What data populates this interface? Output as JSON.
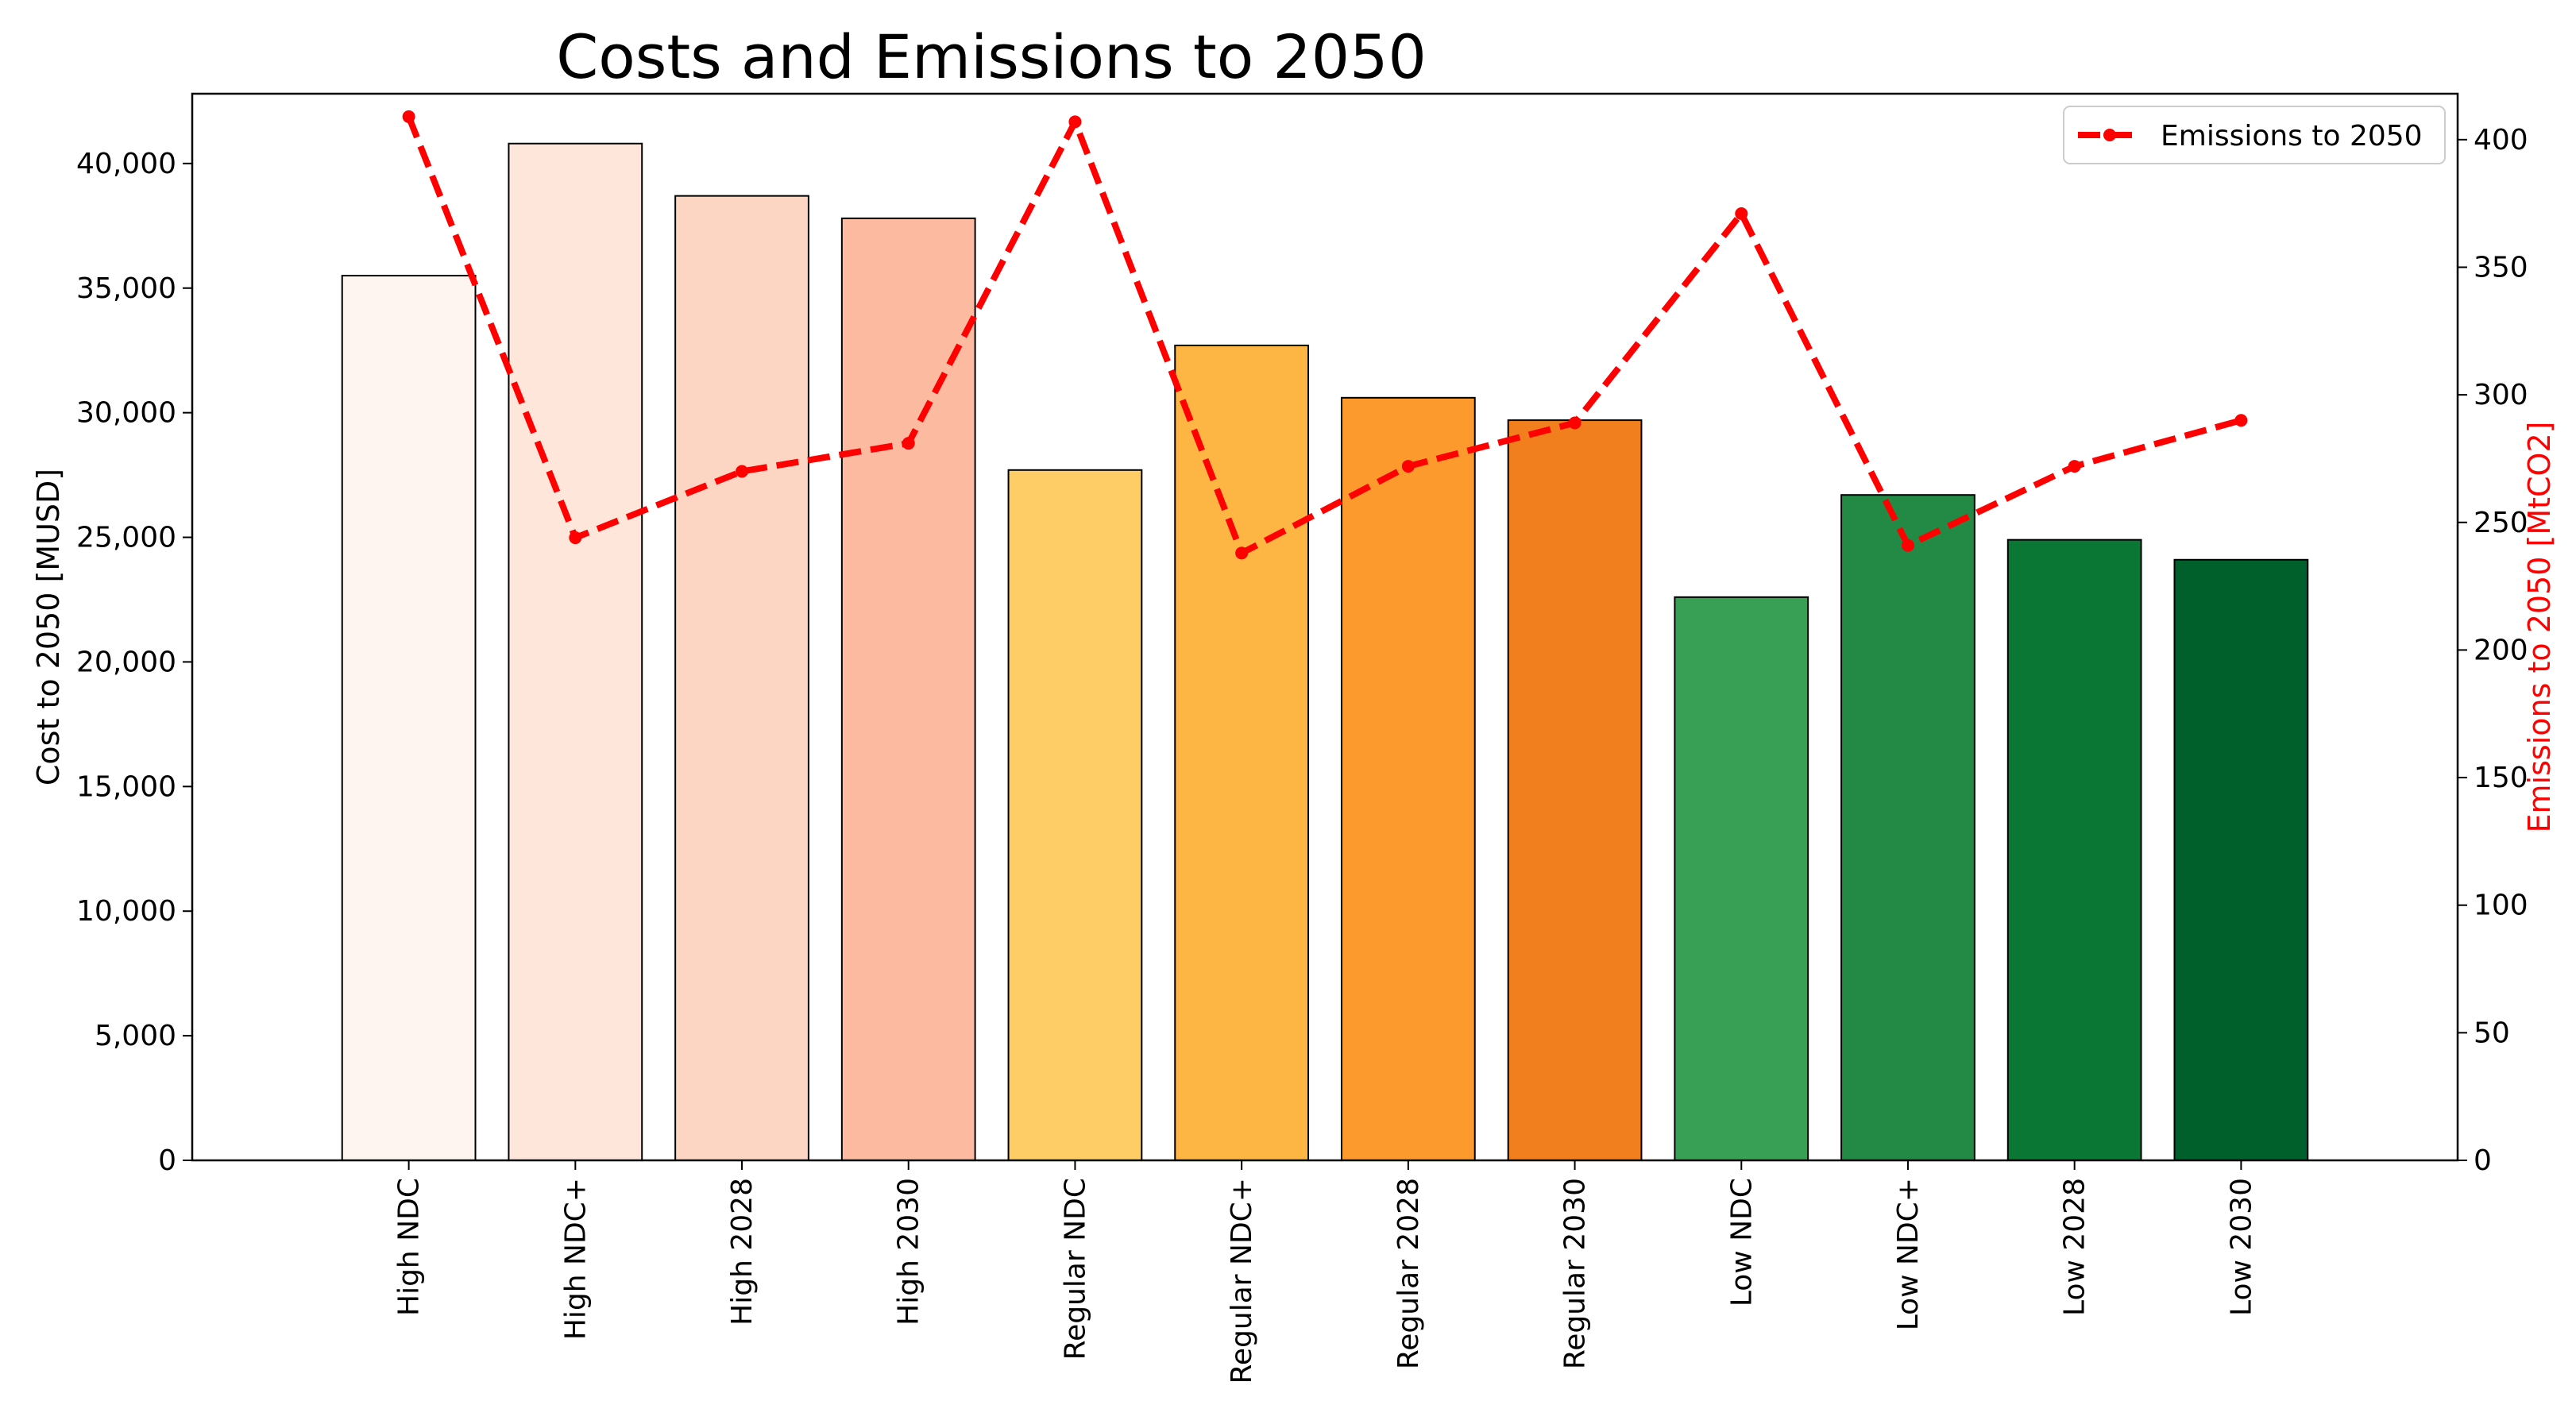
{
  "chart_data": {
    "type": "bar",
    "title": "Costs and Emissions to 2050",
    "xlabel": "",
    "ylabel": "Cost to 2050 [MUSD]",
    "y2label": "Emissions to 2050 [MtCO2]",
    "categories": [
      "High NDC",
      "High NDC+",
      "High 2028",
      "High 2030",
      "Regular NDC",
      "Regular NDC+",
      "Regular 2028",
      "Regular 2030",
      "Low NDC",
      "Low NDC+",
      "Low 2028",
      "Low 2030"
    ],
    "series": [
      {
        "name": "Cost to 2050",
        "type": "bar",
        "axis": "left",
        "values": [
          35500,
          40800,
          38700,
          37800,
          27700,
          32700,
          30600,
          29700,
          22600,
          26700,
          24900,
          24100
        ],
        "colors": [
          "#fff5f0",
          "#fee6da",
          "#fdd5c3",
          "#fcbaa0",
          "#fecd66",
          "#fdb543",
          "#fd9a2d",
          "#f17f1e",
          "#38a055",
          "#228a44",
          "#0b7734",
          "#00602c"
        ]
      },
      {
        "name": "Emissions to 2050",
        "type": "line",
        "axis": "right",
        "style": "dashed",
        "color": "#ff0000",
        "values": [
          409,
          244,
          270,
          281,
          407,
          238,
          272,
          289,
          371,
          241,
          272,
          290
        ]
      }
    ],
    "ylim": [
      0,
      42800
    ],
    "y2lim": [
      0,
      418
    ],
    "yticks": [
      0,
      5000,
      10000,
      15000,
      20000,
      25000,
      30000,
      35000,
      40000
    ],
    "ytick_labels": [
      "0",
      "5,000",
      "10,000",
      "15,000",
      "20,000",
      "25,000",
      "30,000",
      "35,000",
      "40,000"
    ],
    "y2ticks": [
      0,
      50,
      100,
      150,
      200,
      250,
      300,
      350,
      400
    ],
    "y2tick_labels": [
      "0",
      "50",
      "100",
      "150",
      "200",
      "250",
      "300",
      "350",
      "400"
    ],
    "legend": {
      "position": "top-right",
      "entries": [
        "Emissions to 2050"
      ]
    },
    "grid": false
  }
}
